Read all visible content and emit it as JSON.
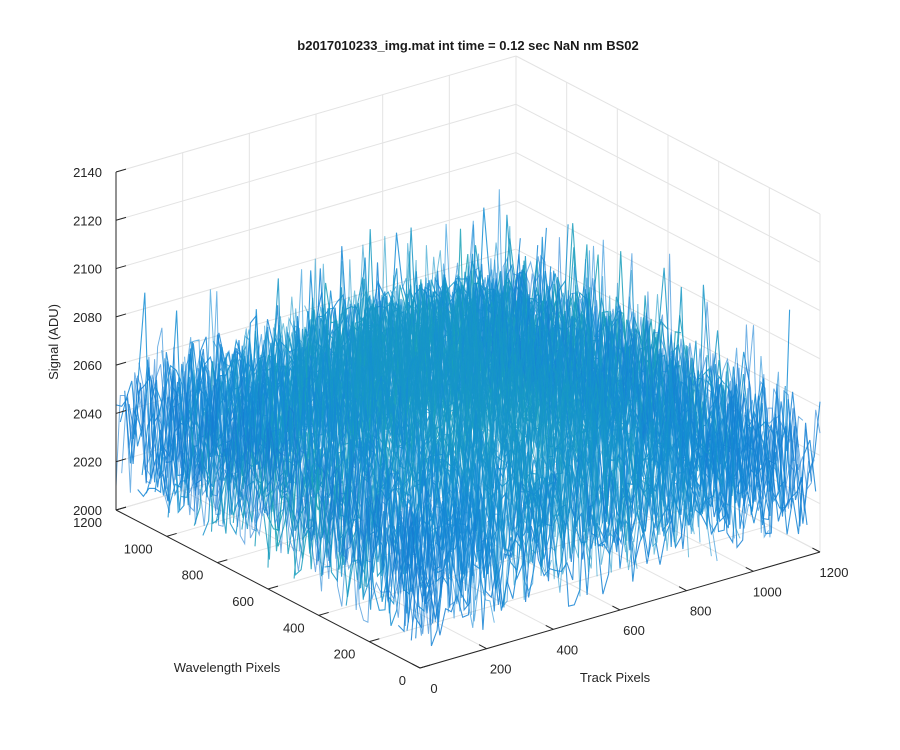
{
  "chart_data": {
    "type": "surface",
    "title": "b2017010233_img.mat int time = 0.12 sec  NaN nm BS02",
    "xlabel": "Track Pixels",
    "ylabel": "Wavelength Pixels",
    "zlabel": "Signal (ADU)",
    "xlim": [
      0,
      1200
    ],
    "ylim": [
      0,
      1200
    ],
    "zlim": [
      2000,
      2140
    ],
    "x_ticks": [
      0,
      200,
      400,
      600,
      800,
      1000,
      1200
    ],
    "y_ticks": [
      0,
      200,
      400,
      600,
      800,
      1000,
      1200
    ],
    "z_ticks": [
      2000,
      2020,
      2040,
      2060,
      2080,
      2100,
      2120,
      2140
    ],
    "grid": true,
    "colormap": "parula",
    "surface_summary": {
      "baseline_mean": 2035,
      "min": 2000,
      "max": 2135,
      "note": "Noisy image surface; higher signal toward back-center"
    },
    "colors": {
      "low": "#1f77d4",
      "mid": "#20b2a0",
      "high": "#e8c63a"
    }
  }
}
